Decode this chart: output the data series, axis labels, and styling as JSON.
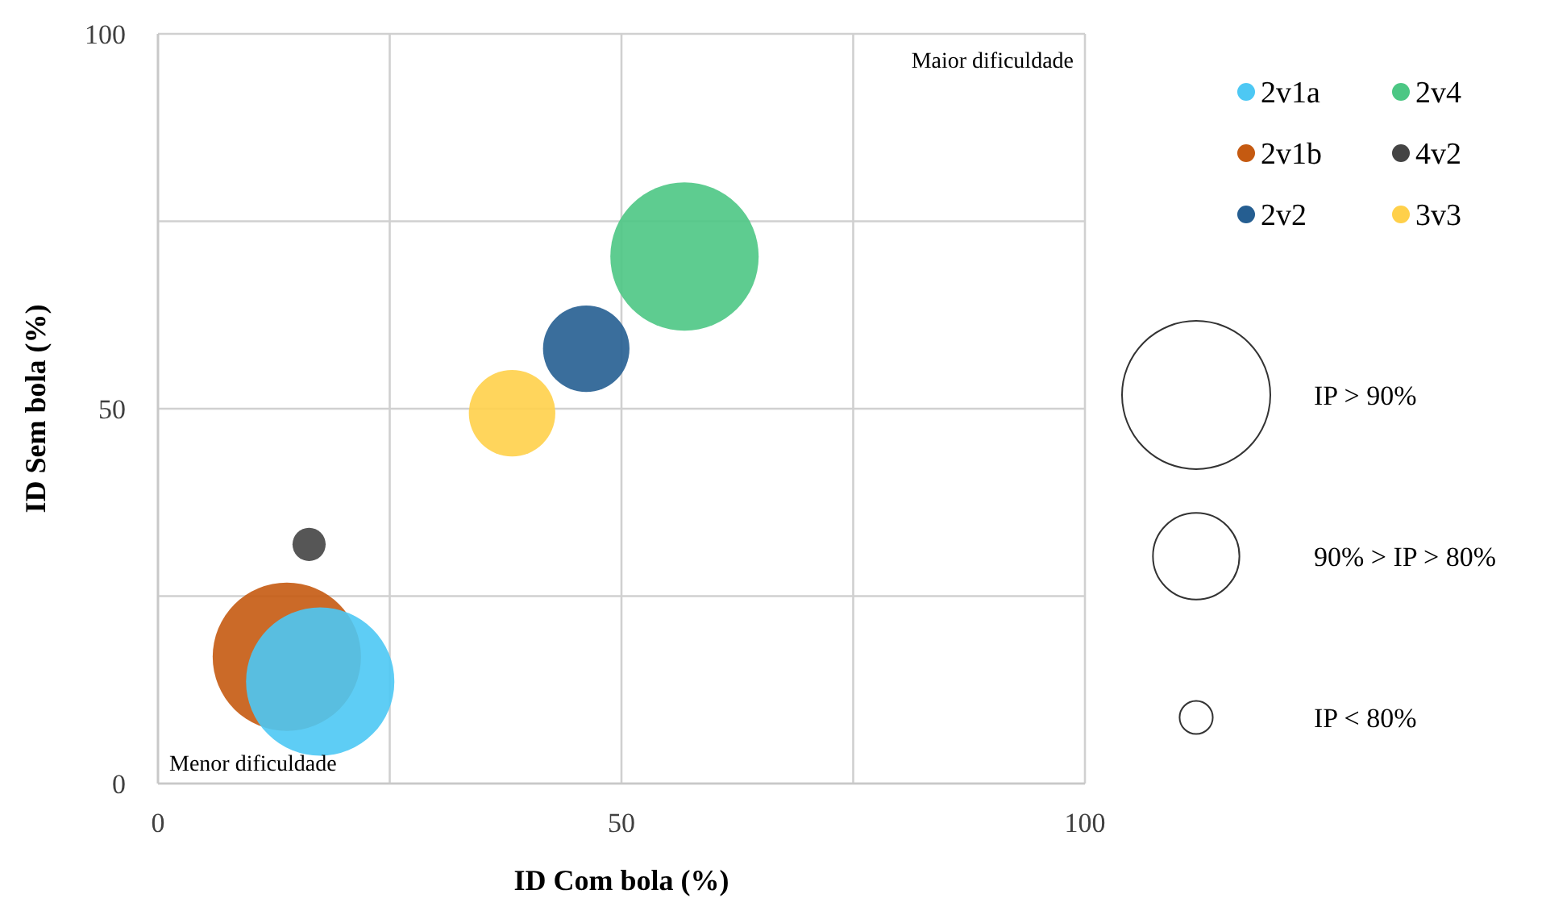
{
  "chart_data": {
    "type": "bubble",
    "xlabel": "ID Com bola (%)",
    "ylabel": "ID Sem bola (%)",
    "xlim": [
      0,
      100
    ],
    "ylim": [
      0,
      100
    ],
    "xticks": [
      0,
      {
        "value": 25,
        "label": null
      },
      50,
      {
        "value": 75,
        "label": null
      },
      100
    ],
    "yticks": [
      0,
      {
        "value": 25,
        "label": null
      },
      50,
      {
        "value": 75,
        "label": null
      },
      100
    ],
    "grid": true,
    "legend": "top right",
    "annotations": [
      "Maior dificuldade",
      "Menor dificuldade"
    ],
    "size_legend": [
      {
        "value": 1,
        "label": "IP > 90%"
      },
      {
        "value": 0.34,
        "label": "90% > IP > 80%"
      },
      {
        "value": 0.05,
        "label": "IP < 80%"
      }
    ],
    "series": [
      {
        "name": "2v1a",
        "color": "#4dc8f4",
        "x": [
          17.5
        ],
        "values": [
          13.6
        ],
        "sizes": [
          1
        ]
      },
      {
        "name": "2v1b",
        "color": "#c55a11",
        "x": [
          13.9
        ],
        "values": [
          16.9
        ],
        "sizes": [
          1
        ]
      },
      {
        "name": "2v2",
        "color": "#255e91",
        "x": [
          46.2
        ],
        "values": [
          58.0
        ],
        "sizes": [
          0.34
        ]
      },
      {
        "name": "2v4",
        "color": "#4cc784",
        "x": [
          56.8
        ],
        "values": [
          70.3
        ],
        "sizes": [
          1
        ]
      },
      {
        "name": "4v2",
        "color": "#444444",
        "x": [
          16.3
        ],
        "values": [
          31.9
        ],
        "sizes": [
          0.05
        ]
      },
      {
        "name": "3v3",
        "color": "#ffd04a",
        "x": [
          38.2
        ],
        "values": [
          49.4
        ],
        "sizes": [
          0.34
        ]
      }
    ]
  }
}
